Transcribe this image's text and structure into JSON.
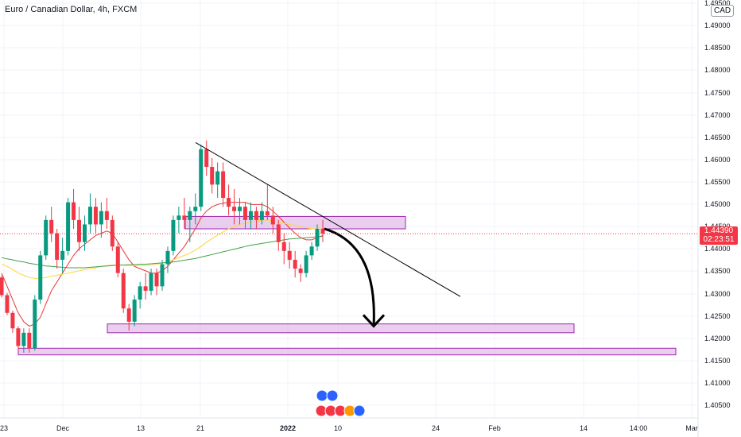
{
  "header": {
    "symbol_title": "Euro / Canadian Dollar, 4h, FXCM",
    "currency": "CAD"
  },
  "last_price": {
    "value": "1.44390",
    "countdown": "02:23:51",
    "color": "#f23645"
  },
  "colors": {
    "up": "#089981",
    "down": "#f23645",
    "ma_fast": "#e53935",
    "ma_mid": "#fdd835",
    "ma_slow": "#43a047",
    "zone_fill": "#e1bee7",
    "zone_stroke": "#9c27b0",
    "trendline": "#000000",
    "arrow": "#000000"
  },
  "chart_data": {
    "type": "candlestick",
    "title": "Euro / Canadian Dollar, 4h, FXCM",
    "y_ticks": [
      "1.49500",
      "1.49000",
      "1.48500",
      "1.48000",
      "1.47500",
      "1.47000",
      "1.46500",
      "1.46000",
      "1.45500",
      "1.45000",
      "1.44500",
      "1.44000",
      "1.43500",
      "1.43000",
      "1.42500",
      "1.42000",
      "1.41500",
      "1.41000",
      "1.40500"
    ],
    "ylim": [
      1.4035,
      1.4962
    ],
    "x_ticks": [
      "23",
      "Dec",
      "13",
      "21",
      "2022",
      "10",
      "24",
      "Feb",
      "14",
      "14:00",
      "Mar"
    ],
    "x_tick_bold": [
      "2022"
    ],
    "series": [
      {
        "kind": "candles",
        "points": [
          [
            1.434,
            1.4345,
            1.4295,
            1.43
          ],
          [
            1.43,
            1.4305,
            1.4255,
            1.426
          ],
          [
            1.426,
            1.4265,
            1.4215,
            1.4225
          ],
          [
            1.4225,
            1.423,
            1.4175,
            1.4185
          ],
          [
            1.4185,
            1.4225,
            1.417,
            1.4215
          ],
          [
            1.4215,
            1.4225,
            1.417,
            1.418
          ],
          [
            1.418,
            1.43,
            1.4175,
            1.429
          ],
          [
            1.429,
            1.44,
            1.428,
            1.439
          ],
          [
            1.439,
            1.448,
            1.438,
            1.447
          ],
          [
            1.447,
            1.45,
            1.442,
            1.444
          ],
          [
            1.444,
            1.445,
            1.436,
            1.438
          ],
          [
            1.438,
            1.443,
            1.435,
            1.44
          ],
          [
            1.44,
            1.452,
            1.439,
            1.451
          ],
          [
            1.451,
            1.454,
            1.445,
            1.447
          ],
          [
            1.447,
            1.45,
            1.44,
            1.442
          ],
          [
            1.442,
            1.448,
            1.44,
            1.446
          ],
          [
            1.446,
            1.453,
            1.444,
            1.45
          ],
          [
            1.45,
            1.452,
            1.444,
            1.446
          ],
          [
            1.446,
            1.451,
            1.443,
            1.449
          ],
          [
            1.449,
            1.452,
            1.445,
            1.447
          ],
          [
            1.447,
            1.448,
            1.44,
            1.441
          ],
          [
            1.441,
            1.442,
            1.434,
            1.435
          ],
          [
            1.435,
            1.436,
            1.426,
            1.427
          ],
          [
            1.427,
            1.428,
            1.422,
            1.424
          ],
          [
            1.424,
            1.43,
            1.423,
            1.429
          ],
          [
            1.429,
            1.433,
            1.427,
            1.432
          ],
          [
            1.432,
            1.435,
            1.429,
            1.431
          ],
          [
            1.431,
            1.436,
            1.43,
            1.435
          ],
          [
            1.435,
            1.436,
            1.43,
            1.432
          ],
          [
            1.432,
            1.438,
            1.431,
            1.437
          ],
          [
            1.437,
            1.441,
            1.435,
            1.44
          ],
          [
            1.44,
            1.448,
            1.439,
            1.447
          ],
          [
            1.447,
            1.45,
            1.444,
            1.448
          ],
          [
            1.448,
            1.452,
            1.445,
            1.447
          ],
          [
            1.447,
            1.45,
            1.442,
            1.449
          ],
          [
            1.449,
            1.453,
            1.446,
            1.45
          ],
          [
            1.45,
            1.464,
            1.449,
            1.463
          ],
          [
            1.463,
            1.465,
            1.457,
            1.459
          ],
          [
            1.459,
            1.461,
            1.453,
            1.455
          ],
          [
            1.455,
            1.46,
            1.452,
            1.458
          ],
          [
            1.458,
            1.46,
            1.45,
            1.452
          ],
          [
            1.452,
            1.455,
            1.448,
            1.45
          ],
          [
            1.45,
            1.454,
            1.446,
            1.449
          ],
          [
            1.449,
            1.452,
            1.446,
            1.45
          ],
          [
            1.45,
            1.451,
            1.445,
            1.447
          ],
          [
            1.447,
            1.451,
            1.445,
            1.449
          ],
          [
            1.449,
            1.45,
            1.445,
            1.447
          ],
          [
            1.447,
            1.451,
            1.446,
            1.449
          ],
          [
            1.449,
            1.455,
            1.447,
            1.448
          ],
          [
            1.448,
            1.45,
            1.444,
            1.446
          ],
          [
            1.446,
            1.447,
            1.44,
            1.442
          ],
          [
            1.442,
            1.444,
            1.437,
            1.44
          ],
          [
            1.44,
            1.442,
            1.436,
            1.438
          ],
          [
            1.438,
            1.44,
            1.434,
            1.436
          ],
          [
            1.436,
            1.437,
            1.433,
            1.435
          ],
          [
            1.435,
            1.44,
            1.434,
            1.439
          ],
          [
            1.439,
            1.442,
            1.438,
            1.441
          ],
          [
            1.441,
            1.446,
            1.44,
            1.445
          ],
          [
            1.445,
            1.447,
            1.442,
            1.4439
          ]
        ]
      },
      {
        "name": "",
        "kind": "ma_fast",
        "values": [
          1.435,
          1.432,
          1.429,
          1.426,
          1.424,
          1.423,
          1.4235,
          1.425,
          1.428,
          1.431,
          1.433,
          1.435,
          1.437,
          1.439,
          1.4405,
          1.4415,
          1.4425,
          1.4435,
          1.444,
          1.4445,
          1.444,
          1.442,
          1.44,
          1.438,
          1.4365,
          1.436,
          1.4355,
          1.435,
          1.435,
          1.4355,
          1.4365,
          1.438,
          1.4395,
          1.441,
          1.443,
          1.445,
          1.4475,
          1.449,
          1.45,
          1.4505,
          1.4508,
          1.451,
          1.451,
          1.451,
          1.451,
          1.4505,
          1.4505,
          1.4505,
          1.45,
          1.449,
          1.4478,
          1.4465,
          1.4452,
          1.444,
          1.443,
          1.4425,
          1.4425,
          1.443,
          1.4435
        ]
      },
      {
        "name": "",
        "kind": "ma_mid",
        "values": [
          1.437,
          1.4365,
          1.4358,
          1.435,
          1.4345,
          1.434,
          1.4338,
          1.4338,
          1.434,
          1.4343,
          1.4345,
          1.4347,
          1.435,
          1.4352,
          1.4355,
          1.4358,
          1.436,
          1.4362,
          1.4365,
          1.4367,
          1.4368,
          1.4368,
          1.4368,
          1.4367,
          1.4367,
          1.4367,
          1.4367,
          1.4368,
          1.437,
          1.4372,
          1.4375,
          1.438,
          1.4385,
          1.439,
          1.4395,
          1.4402,
          1.441,
          1.442,
          1.4428,
          1.4436,
          1.4443,
          1.445,
          1.4455,
          1.446,
          1.4463,
          1.4466,
          1.4468,
          1.447,
          1.447,
          1.4468,
          1.4466,
          1.4463,
          1.446,
          1.4457,
          1.4454,
          1.4452,
          1.445,
          1.445,
          1.445
        ]
      },
      {
        "name": "",
        "kind": "ma_slow",
        "values": [
          1.4385,
          1.4382,
          1.438,
          1.4377,
          1.4375,
          1.4372,
          1.437,
          1.4368,
          1.4366,
          1.4365,
          1.4364,
          1.4363,
          1.4362,
          1.4362,
          1.4362,
          1.4362,
          1.4363,
          1.4364,
          1.4365,
          1.4366,
          1.4367,
          1.4368,
          1.4368,
          1.4369,
          1.4369,
          1.437,
          1.437,
          1.4371,
          1.4372,
          1.4373,
          1.4374,
          1.4375,
          1.4377,
          1.4379,
          1.4381,
          1.4383,
          1.4386,
          1.4389,
          1.4392,
          1.4395,
          1.4398,
          1.4401,
          1.4404,
          1.4407,
          1.441,
          1.4413,
          1.4415,
          1.4417,
          1.4419,
          1.4421,
          1.4423,
          1.4425,
          1.4427,
          1.4428,
          1.4429,
          1.443,
          1.4431,
          1.4432,
          1.4433
        ]
      }
    ],
    "annotations": {
      "zones": [
        {
          "y_top": 1.4478,
          "y_bottom": 1.445,
          "x_start": 233,
          "x_end": 510
        },
        {
          "y_top": 1.4235,
          "y_bottom": 1.4215,
          "x_start": 135,
          "x_end": 722
        },
        {
          "y_top": 1.418,
          "y_bottom": 1.4165,
          "x_start": 23,
          "x_end": 850
        }
      ],
      "trendline": {
        "y_start": 1.4645,
        "x_start": 246,
        "y_end": 1.4297,
        "x_end": 579
      },
      "projection_arrow": {
        "from": [
          408,
          1.445
        ],
        "to": [
          470,
          1.423
        ]
      }
    }
  }
}
